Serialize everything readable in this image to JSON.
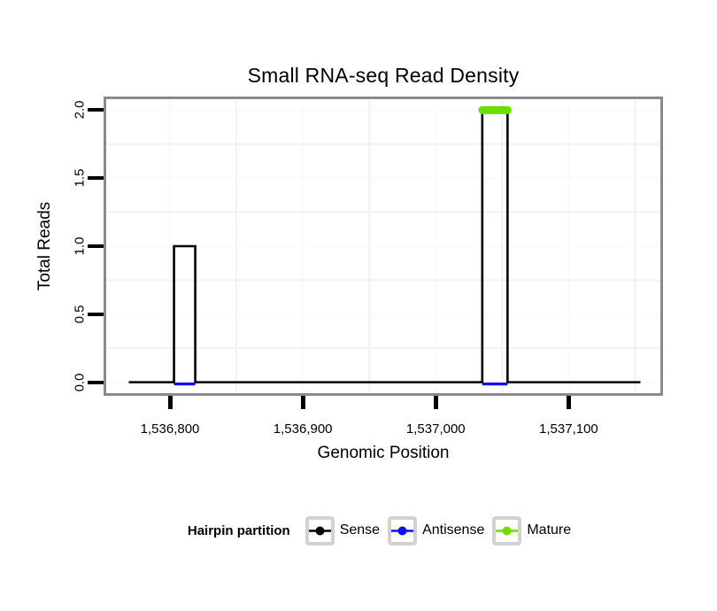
{
  "chart_data": {
    "type": "line",
    "title": "Small RNA-seq Read Density",
    "xlabel": "Genomic Position",
    "ylabel": "Total Reads",
    "xlim": [
      1536750,
      1537171
    ],
    "ylim": [
      -0.1,
      2.1
    ],
    "xticks": {
      "values": [
        1536800,
        1536900,
        1537000,
        1537100
      ],
      "labels": [
        "1,536,800",
        "1,536,900",
        "1,537,000",
        "1,537,100"
      ]
    },
    "yticks": {
      "values": [
        0,
        0.5,
        1,
        1.5,
        2
      ],
      "labels": [
        "0.0",
        "0.5",
        "1.0",
        "1.5",
        "2.0"
      ]
    },
    "grid": {
      "minor_x": [
        1536850,
        1536950,
        1537050,
        1537150
      ],
      "minor_y": [
        0.25,
        0.75,
        1.25,
        1.75
      ],
      "major_on": true,
      "minor_on": true
    },
    "legend_position": "bottom",
    "series": [
      {
        "name": "Sense",
        "color": "#000000",
        "type": "step-outline",
        "baseline": 0,
        "span": [
          1536769,
          1537154
        ],
        "peaks": [
          {
            "start": 1536803,
            "end": 1536819,
            "reads": 1
          },
          {
            "start": 1537035,
            "end": 1537054,
            "reads": 2
          }
        ]
      },
      {
        "name": "Antisense",
        "color": "#0f0fff",
        "type": "flat-line",
        "y": 0,
        "span": [
          1536769,
          1537154
        ]
      },
      {
        "name": "Mature",
        "color": "#6cdf00",
        "type": "segment",
        "y": 2,
        "span": [
          1537035,
          1537054
        ]
      }
    ]
  },
  "legend": {
    "title": "Hairpin partition",
    "items": [
      {
        "label": "Sense",
        "color": "#000000"
      },
      {
        "label": "Antisense",
        "color": "#0f0fff"
      },
      {
        "label": "Mature",
        "color": "#6cdf00"
      }
    ]
  }
}
